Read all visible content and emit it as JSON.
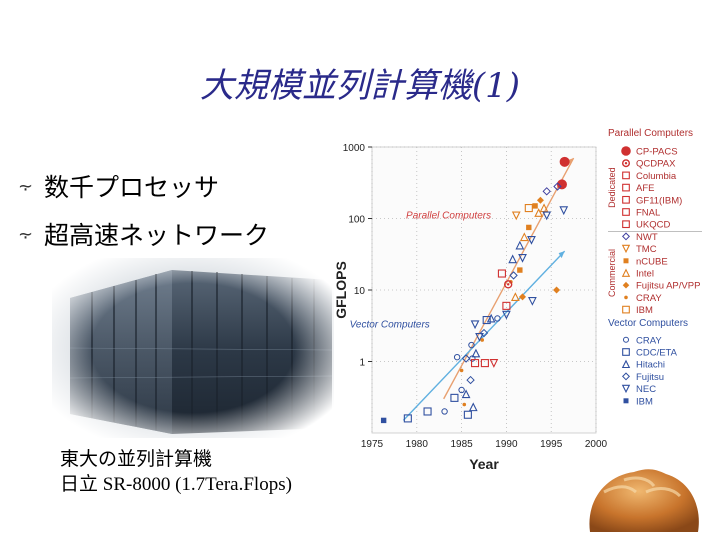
{
  "slide": {
    "title": "大規模並列計算機(1)",
    "bullets": [
      "数千プロセッサ",
      "超高速ネットワーク"
    ],
    "caption_line1": "東大の並列計算機",
    "caption_line2": "日立 SR-8000 (1.7Tera.Flops)"
  },
  "chart_data": {
    "type": "scatter",
    "xlabel": "Year",
    "ylabel": "GFLOPS",
    "xlim": [
      1975,
      2000
    ],
    "ylim": [
      0.1,
      1000
    ],
    "y_scale": "log",
    "x_ticks": [
      1975,
      1980,
      1985,
      1990,
      1995,
      2000
    ],
    "y_ticks": [
      {
        "v": 1,
        "label": "1"
      },
      {
        "v": 10,
        "label": "10"
      },
      {
        "v": 100,
        "label": "100"
      },
      {
        "v": 1000,
        "label": "1000"
      }
    ],
    "annotations": [
      {
        "text": "Parallel Computers",
        "x": 1978.8,
        "y": 100,
        "color": "#d04040"
      },
      {
        "text": "Vector Computers",
        "x": 1972.5,
        "y": 3,
        "color": "#3050a0"
      }
    ],
    "trend_lines": [
      {
        "name": "parallel",
        "color": "#e8a070",
        "points": [
          [
            1983,
            0.3
          ],
          [
            1997.5,
            700
          ]
        ]
      },
      {
        "name": "vector",
        "color": "#60b0e0",
        "points": [
          [
            1978.5,
            0.15
          ],
          [
            1996.5,
            35
          ]
        ]
      }
    ],
    "legend": {
      "parallel_header": "Parallel Computers",
      "dedicated_label": "Dedicated",
      "commercial_label": "Commercial",
      "vector_header": "Vector Computers",
      "parallel_items": [
        {
          "label": "CP-PACS",
          "color": "#d03030",
          "marker": "filled-circle"
        },
        {
          "label": "QCDPAX",
          "color": "#d03030",
          "marker": "ring-dot"
        },
        {
          "label": "Columbia",
          "color": "#d03030",
          "marker": "square"
        },
        {
          "label": "AFE",
          "color": "#d03030",
          "marker": "square"
        },
        {
          "label": "GF11(IBM)",
          "color": "#d03030",
          "marker": "square"
        },
        {
          "label": "FNAL",
          "color": "#d03030",
          "marker": "square"
        },
        {
          "label": "UKQCD",
          "color": "#d03030",
          "marker": "square"
        },
        {
          "label": "NWT",
          "color": "#4040a0",
          "marker": "diamond"
        },
        {
          "label": "TMC",
          "color": "#e08020",
          "marker": "triangle-down"
        },
        {
          "label": "nCUBE",
          "color": "#e08020",
          "marker": "filled-square"
        },
        {
          "label": "Intel",
          "color": "#e08020",
          "marker": "triangle-up"
        },
        {
          "label": "Fujitsu AP/VPP",
          "color": "#e08020",
          "marker": "filled-diamond"
        },
        {
          "label": "CRAY",
          "color": "#e08020",
          "marker": "dot"
        },
        {
          "label": "IBM",
          "color": "#e08020",
          "marker": "square"
        }
      ],
      "vector_items": [
        {
          "label": "CRAY",
          "color": "#3050a0",
          "marker": "circle"
        },
        {
          "label": "CDC/ETA",
          "color": "#3050a0",
          "marker": "square"
        },
        {
          "label": "Hitachi",
          "color": "#3050a0",
          "marker": "triangle-up"
        },
        {
          "label": "Fujitsu",
          "color": "#3050a0",
          "marker": "diamond"
        },
        {
          "label": "NEC",
          "color": "#3050a0",
          "marker": "triangle-down"
        },
        {
          "label": "IBM",
          "color": "#3050a0",
          "marker": "filled-square"
        }
      ]
    },
    "points": [
      {
        "x": 1996.5,
        "y": 620,
        "marker": "filled-circle",
        "color": "#d03030"
      },
      {
        "x": 1996.2,
        "y": 300,
        "marker": "filled-circle",
        "color": "#d03030"
      },
      {
        "x": 1994.5,
        "y": 240,
        "marker": "diamond",
        "color": "#4040a0"
      },
      {
        "x": 1995.7,
        "y": 280,
        "marker": "diamond",
        "color": "#4040a0"
      },
      {
        "x": 1992.5,
        "y": 140,
        "marker": "square",
        "color": "#e08020"
      },
      {
        "x": 1993.2,
        "y": 150,
        "marker": "filled-square",
        "color": "#e08020"
      },
      {
        "x": 1993.6,
        "y": 120,
        "marker": "triangle-up",
        "color": "#e08020"
      },
      {
        "x": 1994.2,
        "y": 140,
        "marker": "triangle-up",
        "color": "#e08020"
      },
      {
        "x": 1993.8,
        "y": 180,
        "marker": "filled-diamond",
        "color": "#e08020"
      },
      {
        "x": 1991.1,
        "y": 110,
        "marker": "triangle-down",
        "color": "#e08020"
      },
      {
        "x": 1992.5,
        "y": 75,
        "marker": "filled-square",
        "color": "#e08020"
      },
      {
        "x": 1994.5,
        "y": 110,
        "marker": "triangle-down",
        "color": "#3050a0"
      },
      {
        "x": 1996.4,
        "y": 130,
        "marker": "triangle-down",
        "color": "#3050a0"
      },
      {
        "x": 1992.0,
        "y": 55,
        "marker": "triangle-up",
        "color": "#e08020"
      },
      {
        "x": 1992.8,
        "y": 50,
        "marker": "triangle-down",
        "color": "#3050a0"
      },
      {
        "x": 1991.5,
        "y": 42,
        "marker": "triangle-up",
        "color": "#3050a0"
      },
      {
        "x": 1991.8,
        "y": 28,
        "marker": "triangle-down",
        "color": "#3050a0"
      },
      {
        "x": 1990.7,
        "y": 27,
        "marker": "triangle-up",
        "color": "#3050a0"
      },
      {
        "x": 1989.5,
        "y": 17,
        "marker": "square",
        "color": "#d03030"
      },
      {
        "x": 1990.8,
        "y": 16,
        "marker": "diamond",
        "color": "#3050a0"
      },
      {
        "x": 1990.5,
        "y": 13,
        "marker": "dot",
        "color": "#e08020"
      },
      {
        "x": 1990.2,
        "y": 12,
        "marker": "ring-dot",
        "color": "#d03030"
      },
      {
        "x": 1991.5,
        "y": 19,
        "marker": "filled-square",
        "color": "#e08020"
      },
      {
        "x": 1991.0,
        "y": 8,
        "marker": "triangle-up",
        "color": "#e08020"
      },
      {
        "x": 1991.8,
        "y": 8,
        "marker": "filled-diamond",
        "color": "#e08020"
      },
      {
        "x": 1992.9,
        "y": 7,
        "marker": "triangle-down",
        "color": "#3050a0"
      },
      {
        "x": 1995.6,
        "y": 10,
        "marker": "filled-diamond",
        "color": "#e08020"
      },
      {
        "x": 1990.0,
        "y": 6,
        "marker": "square",
        "color": "#d03030"
      },
      {
        "x": 1989.0,
        "y": 4,
        "marker": "circle",
        "color": "#3050a0"
      },
      {
        "x": 1990.0,
        "y": 4.5,
        "marker": "triangle-down",
        "color": "#3050a0"
      },
      {
        "x": 1988.3,
        "y": 4,
        "marker": "triangle-up",
        "color": "#3050a0"
      },
      {
        "x": 1987.8,
        "y": 3.8,
        "marker": "square",
        "color": "#3050a0"
      },
      {
        "x": 1986.5,
        "y": 3.3,
        "marker": "triangle-down",
        "color": "#3050a0"
      },
      {
        "x": 1987.5,
        "y": 2.5,
        "marker": "diamond",
        "color": "#3050a0"
      },
      {
        "x": 1987.0,
        "y": 2.2,
        "marker": "triangle-down",
        "color": "#3050a0"
      },
      {
        "x": 1987.3,
        "y": 2.0,
        "marker": "dot",
        "color": "#e08020"
      },
      {
        "x": 1986.1,
        "y": 1.7,
        "marker": "circle",
        "color": "#3050a0"
      },
      {
        "x": 1986.6,
        "y": 1.3,
        "marker": "triangle-up",
        "color": "#3050a0"
      },
      {
        "x": 1985.5,
        "y": 1.1,
        "marker": "diamond",
        "color": "#3050a0"
      },
      {
        "x": 1986.2,
        "y": 1.1,
        "marker": "circle",
        "color": "#3050a0"
      },
      {
        "x": 1984.5,
        "y": 1.15,
        "marker": "circle",
        "color": "#3050a0"
      },
      {
        "x": 1986.5,
        "y": 0.95,
        "marker": "square",
        "color": "#d03030"
      },
      {
        "x": 1987.6,
        "y": 0.95,
        "marker": "square",
        "color": "#d03030"
      },
      {
        "x": 1988.6,
        "y": 0.95,
        "marker": "triangle-down",
        "color": "#d03030"
      },
      {
        "x": 1985.0,
        "y": 0.75,
        "marker": "dot",
        "color": "#e08020"
      },
      {
        "x": 1986.0,
        "y": 0.55,
        "marker": "diamond",
        "color": "#3050a0"
      },
      {
        "x": 1985.0,
        "y": 0.4,
        "marker": "circle",
        "color": "#3050a0"
      },
      {
        "x": 1985.5,
        "y": 0.35,
        "marker": "triangle-up",
        "color": "#3050a0"
      },
      {
        "x": 1984.2,
        "y": 0.31,
        "marker": "square",
        "color": "#3050a0"
      },
      {
        "x": 1985.3,
        "y": 0.25,
        "marker": "dot",
        "color": "#e08020"
      },
      {
        "x": 1981.2,
        "y": 0.2,
        "marker": "square",
        "color": "#3050a0"
      },
      {
        "x": 1983.1,
        "y": 0.2,
        "marker": "circle",
        "color": "#3050a0"
      },
      {
        "x": 1985.7,
        "y": 0.18,
        "marker": "square",
        "color": "#3050a0"
      },
      {
        "x": 1986.3,
        "y": 0.23,
        "marker": "triangle-up",
        "color": "#3050a0"
      },
      {
        "x": 1979.0,
        "y": 0.16,
        "marker": "square",
        "color": "#3050a0"
      },
      {
        "x": 1976.3,
        "y": 0.15,
        "marker": "filled-square",
        "color": "#3050a0"
      }
    ]
  }
}
